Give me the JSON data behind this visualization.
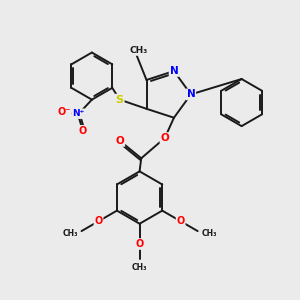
{
  "bg_color": "#ebebeb",
  "bond_color": "#1a1a1a",
  "bond_width": 1.4,
  "atom_colors": {
    "N": "#0000ff",
    "O": "#ff0000",
    "S": "#cccc00",
    "C": "#1a1a1a"
  },
  "figsize": [
    3.0,
    3.0
  ],
  "dpi": 100,
  "xlim": [
    -2.5,
    5.5
  ],
  "ylim": [
    -5.5,
    3.5
  ]
}
